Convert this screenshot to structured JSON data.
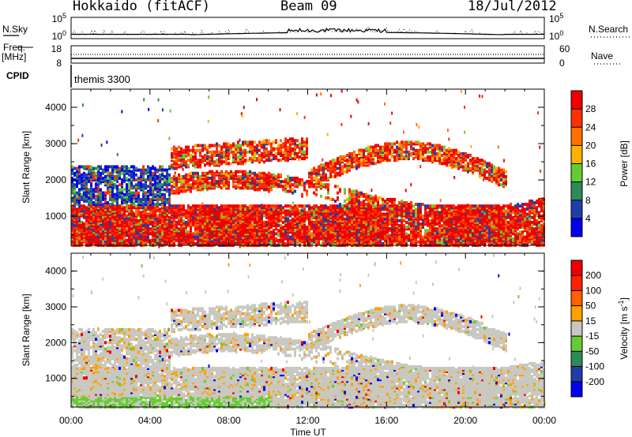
{
  "header": {
    "station": "Hokkaido (fitACF)",
    "beam": "Beam 09",
    "date": "18/Jul/2012"
  },
  "left_labels": {
    "nsky": "N.Sky",
    "freq": "Freq.",
    "freq_unit": "[MHz]",
    "cpid": "CPID"
  },
  "right_labels": {
    "nsearch": "N.Search",
    "nave": "Nave"
  },
  "cpid_text": "themis 3300",
  "chart_data": [
    {
      "type": "line",
      "panel": "noise",
      "series": [
        {
          "name": "N.Sky",
          "style": "solid"
        },
        {
          "name": "N.Search",
          "style": "dotted"
        }
      ],
      "y_ticks_left": [
        "10^5",
        "10^0"
      ],
      "y_ticks_right": [
        "10^5",
        "10^0"
      ]
    },
    {
      "type": "line",
      "panel": "frequency",
      "series": [
        {
          "name": "Freq.",
          "style": "solid"
        },
        {
          "name": "Nave",
          "style": "dotted"
        }
      ],
      "y_ticks_left": [
        "18",
        "8"
      ],
      "y_ticks_right": [
        "60",
        "0"
      ]
    },
    {
      "type": "heatmap",
      "panel": "power",
      "ylabel": "Slant Range [km]",
      "y_ticks": [
        "1000",
        "2000",
        "3000",
        "4000"
      ],
      "ylim": [
        200,
        4500
      ],
      "colorbar_label": "Power [dB]",
      "colorbar_ticks": [
        "4",
        "8",
        "12",
        "16",
        "20",
        "24",
        "28"
      ],
      "colorbar_colors": [
        "#0000ee",
        "#1f3fa8",
        "#2e8b57",
        "#66cc33",
        "#ffb000",
        "#ff7000",
        "#ff3000",
        "#ee0000"
      ]
    },
    {
      "type": "heatmap",
      "panel": "velocity",
      "ylabel": "Slant Range [km]",
      "y_ticks": [
        "1000",
        "2000",
        "3000",
        "4000"
      ],
      "ylim": [
        200,
        4500
      ],
      "colorbar_label": "Velocity [m s^-1]",
      "colorbar_ticks": [
        "200",
        "100",
        "50",
        "15",
        "-15",
        "-50",
        "-100",
        "-200"
      ],
      "colorbar_colors": [
        "#0000ee",
        "#1f3fa8",
        "#2e8b57",
        "#66cc33",
        "#c8c8c0",
        "#ffa000",
        "#ff6000",
        "#ff2000",
        "#ee0000"
      ]
    }
  ],
  "time_axis": {
    "ticks": [
      "00:00",
      "04:00",
      "08:00",
      "12:00",
      "16:00",
      "20:00",
      "00:00"
    ],
    "label": "Time UT"
  }
}
